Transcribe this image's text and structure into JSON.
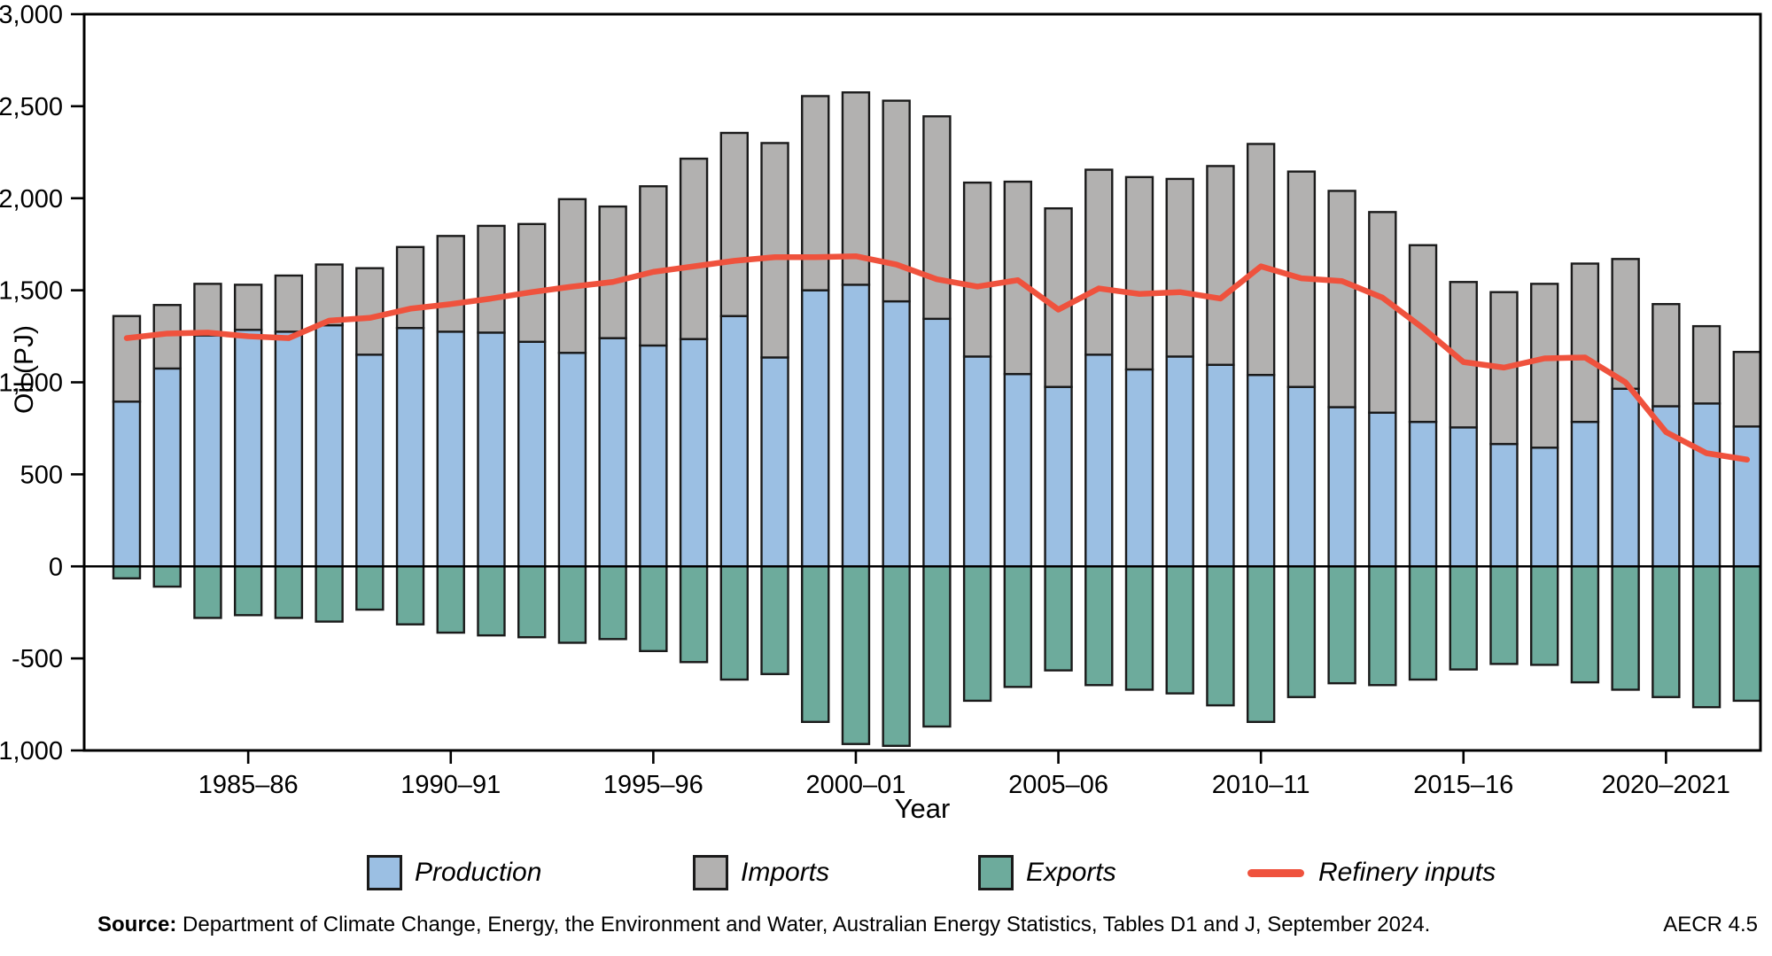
{
  "chart_data": {
    "type": "bar",
    "title": "",
    "xlabel": "Year",
    "ylabel": "Oil (PJ)",
    "ylim": [
      -1000,
      3000
    ],
    "grid": false,
    "legend_position": "bottom",
    "categories": [
      "1982–83",
      "1983–84",
      "1984–85",
      "1985–86",
      "1986–87",
      "1987–88",
      "1988–89",
      "1989–90",
      "1990–91",
      "1991–92",
      "1992–93",
      "1993–94",
      "1994–95",
      "1995–96",
      "1996–97",
      "1997–98",
      "1998–99",
      "1999–00",
      "2000–01",
      "2001–02",
      "2002–03",
      "2003–04",
      "2004–05",
      "2005–06",
      "2006–07",
      "2007–08",
      "2008–09",
      "2009–10",
      "2010–11",
      "2011–12",
      "2012–13",
      "2013–14",
      "2014–15",
      "2015–16",
      "2016–17",
      "2017–18",
      "2018–19",
      "2019–20",
      "2020–21",
      "2021–22",
      "2022–23"
    ],
    "series": [
      {
        "name": "Production",
        "type": "bar",
        "color": "#9bbfe3",
        "values": [
          895,
          1075,
          1255,
          1285,
          1275,
          1310,
          1150,
          1295,
          1275,
          1270,
          1220,
          1160,
          1240,
          1200,
          1235,
          1360,
          1135,
          1500,
          1530,
          1440,
          1345,
          1140,
          1045,
          975,
          1150,
          1070,
          1140,
          1095,
          1040,
          975,
          865,
          835,
          785,
          755,
          665,
          645,
          785,
          965,
          870,
          885,
          760
        ]
      },
      {
        "name": "Imports",
        "type": "bar",
        "color": "#b2b1b0",
        "values": [
          465,
          345,
          280,
          245,
          305,
          330,
          470,
          440,
          520,
          580,
          640,
          835,
          715,
          865,
          980,
          995,
          1165,
          1055,
          1045,
          1090,
          1100,
          945,
          1045,
          970,
          1005,
          1045,
          965,
          1080,
          1255,
          1170,
          1175,
          1090,
          960,
          790,
          825,
          890,
          860,
          705,
          555,
          420,
          405
        ]
      },
      {
        "name": "Exports",
        "type": "bar",
        "color": "#6dab9c",
        "values": [
          -65,
          -110,
          -280,
          -265,
          -280,
          -300,
          -235,
          -315,
          -360,
          -375,
          -385,
          -415,
          -395,
          -460,
          -520,
          -615,
          -585,
          -845,
          -965,
          -975,
          -870,
          -730,
          -655,
          -565,
          -645,
          -670,
          -690,
          -755,
          -845,
          -710,
          -635,
          -645,
          -615,
          -560,
          -530,
          -535,
          -630,
          -670,
          -710,
          -765,
          -730
        ]
      },
      {
        "name": "Refinery inputs",
        "type": "line",
        "color": "#ef523d",
        "values": [
          1240,
          1265,
          1270,
          1250,
          1240,
          1335,
          1350,
          1400,
          1425,
          1455,
          1490,
          1520,
          1545,
          1600,
          1630,
          1660,
          1680,
          1680,
          1685,
          1640,
          1560,
          1520,
          1555,
          1395,
          1510,
          1480,
          1490,
          1455,
          1630,
          1565,
          1550,
          1460,
          1295,
          1110,
          1080,
          1130,
          1135,
          1000,
          730,
          615,
          580
        ]
      }
    ],
    "y_ticks": [
      {
        "value": 3000,
        "label": "3,000"
      },
      {
        "value": 2500,
        "label": "2,500"
      },
      {
        "value": 2000,
        "label": "2,000"
      },
      {
        "value": 1500,
        "label": "1,500"
      },
      {
        "value": 1000,
        "label": "1,000"
      },
      {
        "value": 500,
        "label": "500"
      },
      {
        "value": 0,
        "label": "0"
      },
      {
        "value": -500,
        "label": "-500"
      },
      {
        "value": -1000,
        "label": "-1,000"
      }
    ],
    "x_ticks": [
      {
        "index": 3,
        "label": "1985–86"
      },
      {
        "index": 8,
        "label": "1990–91"
      },
      {
        "index": 13,
        "label": "1995–96"
      },
      {
        "index": 18,
        "label": "2000–01"
      },
      {
        "index": 23,
        "label": "2005–06"
      },
      {
        "index": 28,
        "label": "2010–11"
      },
      {
        "index": 33,
        "label": "2015–16"
      },
      {
        "index": 38,
        "label": "2020–2021"
      }
    ]
  },
  "legend": {
    "production": "Production",
    "imports": "Imports",
    "exports": "Exports",
    "refinery": "Refinery inputs"
  },
  "footer": {
    "source_label": "Source:",
    "source_text": " Department of Climate Change, Energy, the Environment and Water, Australian Energy Statistics, Tables D1 and J, September 2024.",
    "code": "AECR 4.5"
  }
}
